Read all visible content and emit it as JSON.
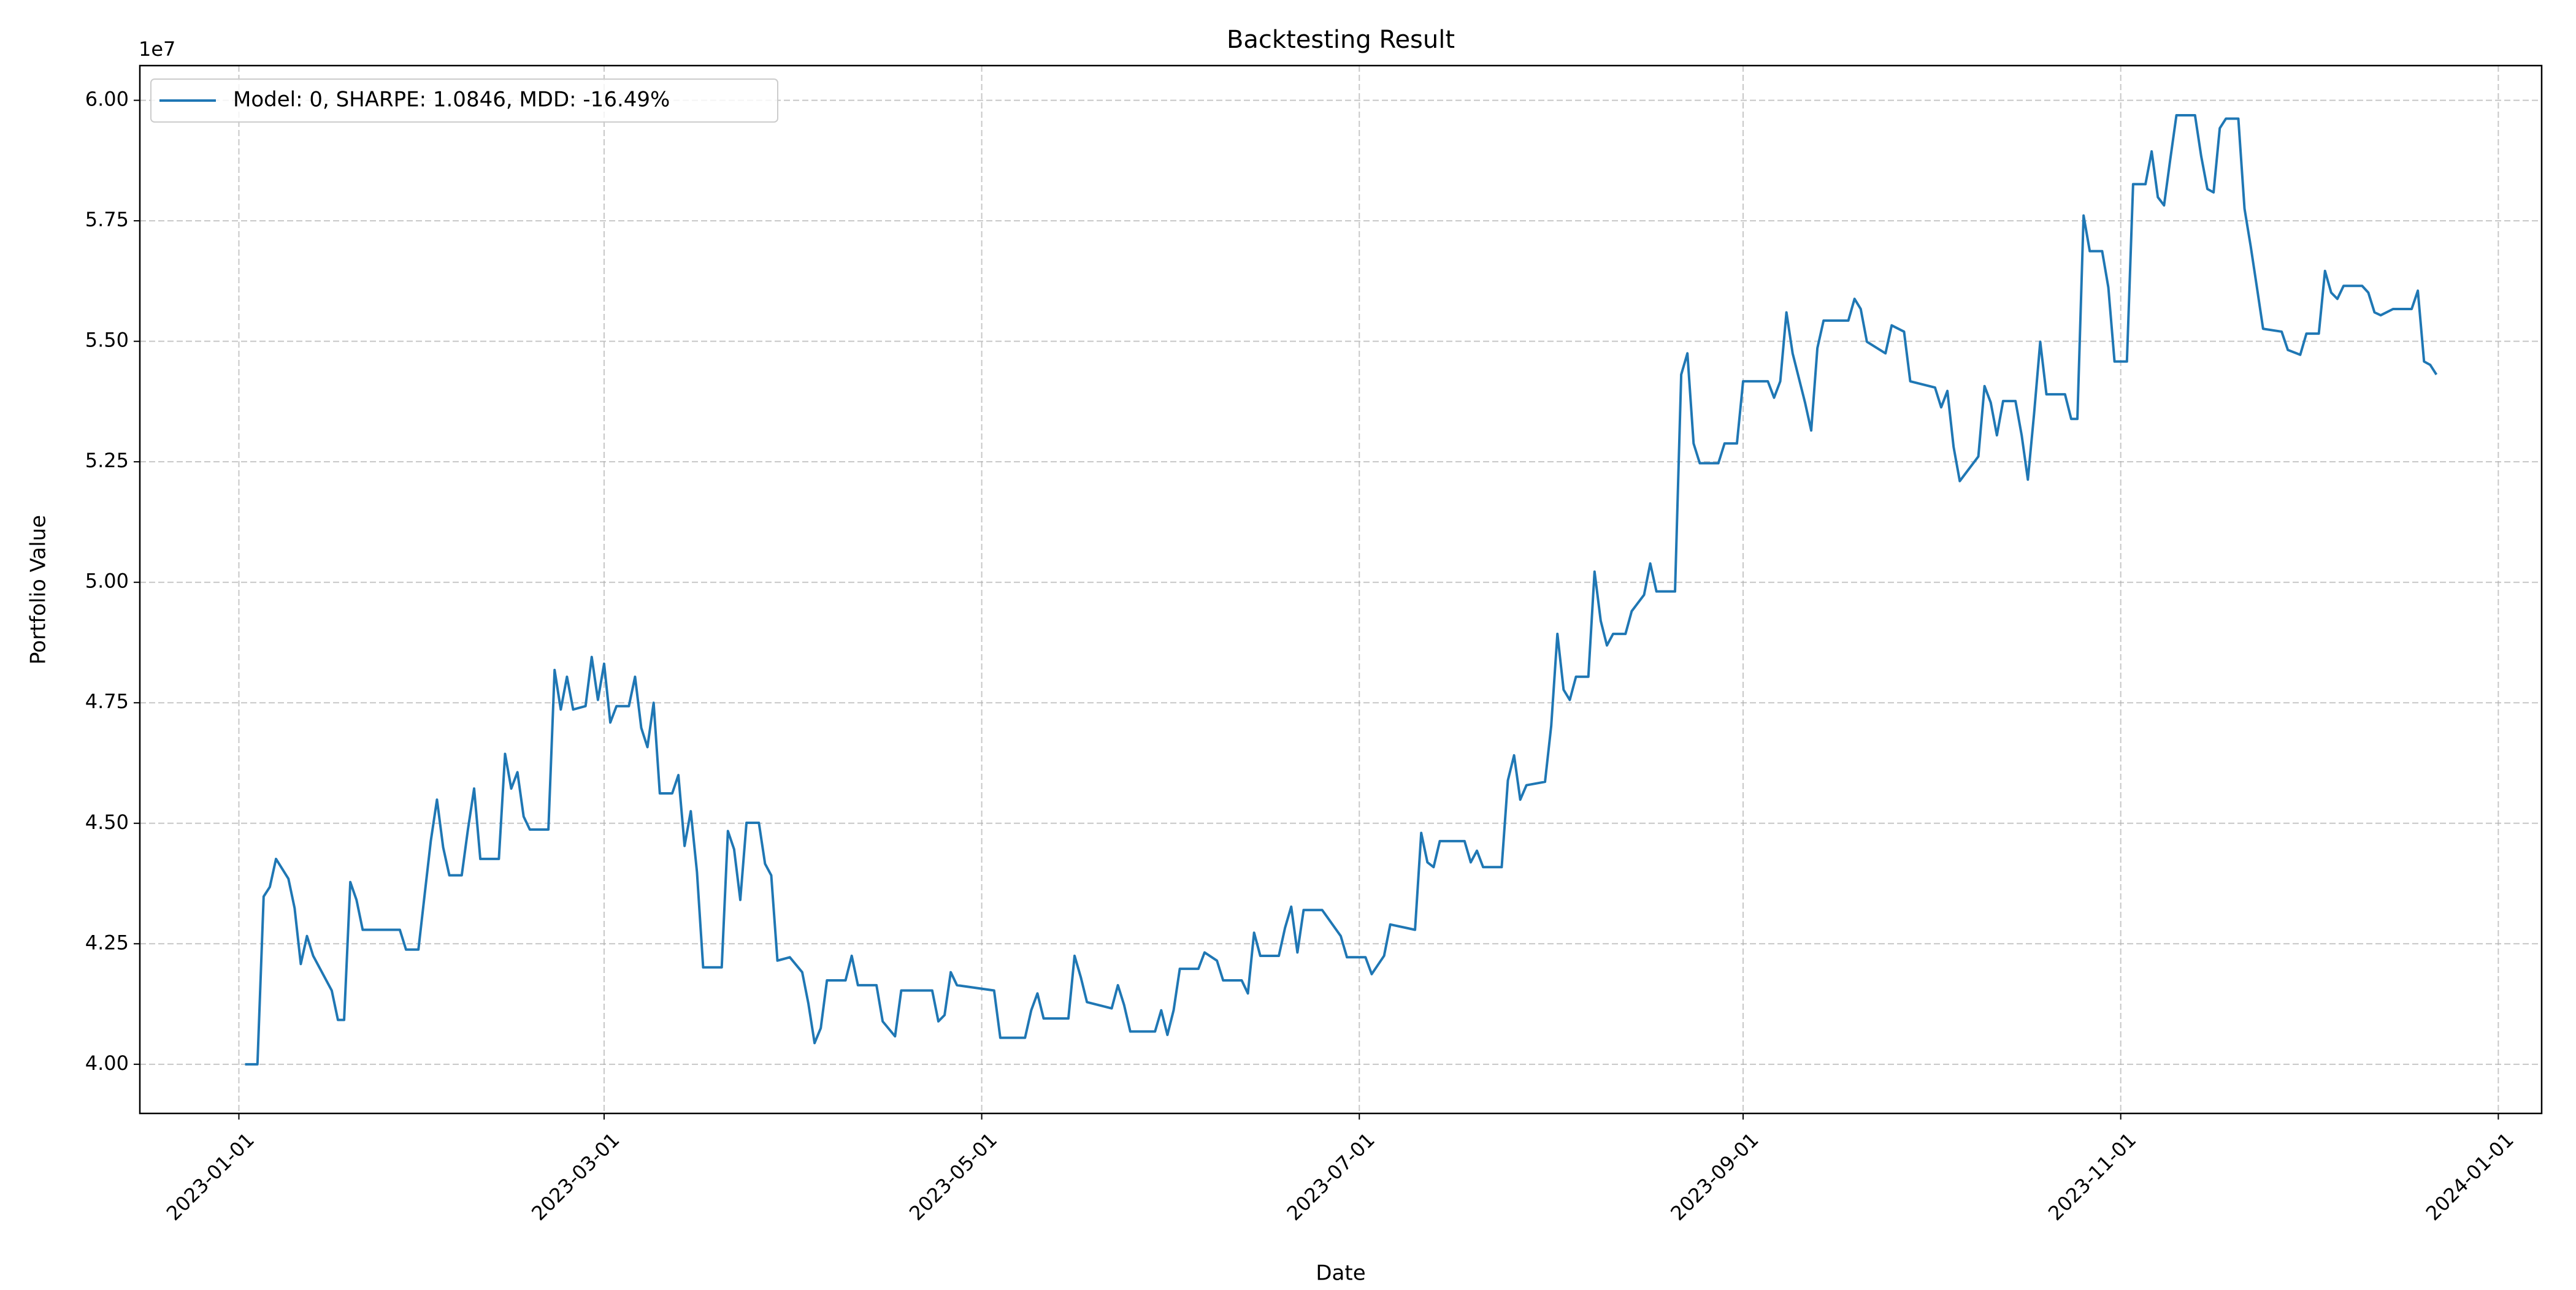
{
  "chart_data": {
    "type": "line",
    "title": "Backtesting Result",
    "x_label": "Date",
    "y_label": "Portfolio Value",
    "y_offset_text": "1e7",
    "x": [
      "2023-01-02",
      "2023-01-04",
      "2023-01-05",
      "2023-01-06",
      "2023-01-07",
      "2023-01-09",
      "2023-01-10",
      "2023-01-11",
      "2023-01-12",
      "2023-01-13",
      "2023-01-16",
      "2023-01-17",
      "2023-01-18",
      "2023-01-19",
      "2023-01-20",
      "2023-01-21",
      "2023-01-27",
      "2023-01-28",
      "2023-01-30",
      "2023-01-31",
      "2023-02-01",
      "2023-02-02",
      "2023-02-03",
      "2023-02-04",
      "2023-02-06",
      "2023-02-07",
      "2023-02-08",
      "2023-02-09",
      "2023-02-12",
      "2023-02-13",
      "2023-02-14",
      "2023-02-15",
      "2023-02-16",
      "2023-02-17",
      "2023-02-20",
      "2023-02-21",
      "2023-02-22",
      "2023-02-23",
      "2023-02-24",
      "2023-02-26",
      "2023-02-27",
      "2023-02-28",
      "2023-03-01",
      "2023-03-02",
      "2023-03-03",
      "2023-03-05",
      "2023-03-06",
      "2023-03-07",
      "2023-03-08",
      "2023-03-09",
      "2023-03-10",
      "2023-03-12",
      "2023-03-13",
      "2023-03-14",
      "2023-03-15",
      "2023-03-16",
      "2023-03-17",
      "2023-03-20",
      "2023-03-21",
      "2023-03-22",
      "2023-03-23",
      "2023-03-24",
      "2023-03-26",
      "2023-03-27",
      "2023-03-28",
      "2023-03-29",
      "2023-03-31",
      "2023-04-02",
      "2023-04-03",
      "2023-04-04",
      "2023-04-05",
      "2023-04-06",
      "2023-04-09",
      "2023-04-10",
      "2023-04-11",
      "2023-04-14",
      "2023-04-15",
      "2023-04-17",
      "2023-04-18",
      "2023-04-23",
      "2023-04-24",
      "2023-04-25",
      "2023-04-26",
      "2023-04-27",
      "2023-05-03",
      "2023-05-04",
      "2023-05-08",
      "2023-05-09",
      "2023-05-10",
      "2023-05-11",
      "2023-05-15",
      "2023-05-16",
      "2023-05-17",
      "2023-05-18",
      "2023-05-22",
      "2023-05-23",
      "2023-05-24",
      "2023-05-25",
      "2023-05-29",
      "2023-05-30",
      "2023-05-31",
      "2023-06-01",
      "2023-06-02",
      "2023-06-05",
      "2023-06-06",
      "2023-06-08",
      "2023-06-09",
      "2023-06-12",
      "2023-06-13",
      "2023-06-14",
      "2023-06-15",
      "2023-06-18",
      "2023-06-19",
      "2023-06-20",
      "2023-06-21",
      "2023-06-22",
      "2023-06-25",
      "2023-06-28",
      "2023-06-29",
      "2023-07-02",
      "2023-07-03",
      "2023-07-05",
      "2023-07-06",
      "2023-07-10",
      "2023-07-11",
      "2023-07-12",
      "2023-07-13",
      "2023-07-14",
      "2023-07-18",
      "2023-07-19",
      "2023-07-20",
      "2023-07-21",
      "2023-07-24",
      "2023-07-25",
      "2023-07-26",
      "2023-07-27",
      "2023-07-28",
      "2023-07-31",
      "2023-08-01",
      "2023-08-02",
      "2023-08-03",
      "2023-08-04",
      "2023-08-05",
      "2023-08-07",
      "2023-08-08",
      "2023-08-09",
      "2023-08-10",
      "2023-08-11",
      "2023-08-13",
      "2023-08-14",
      "2023-08-16",
      "2023-08-17",
      "2023-08-18",
      "2023-08-21",
      "2023-08-22",
      "2023-08-23",
      "2023-08-24",
      "2023-08-25",
      "2023-08-28",
      "2023-08-29",
      "2023-08-31",
      "2023-09-01",
      "2023-09-05",
      "2023-09-06",
      "2023-09-07",
      "2023-09-08",
      "2023-09-09",
      "2023-09-11",
      "2023-09-12",
      "2023-09-13",
      "2023-09-14",
      "2023-09-18",
      "2023-09-19",
      "2023-09-20",
      "2023-09-21",
      "2023-09-24",
      "2023-09-25",
      "2023-09-27",
      "2023-09-28",
      "2023-10-02",
      "2023-10-03",
      "2023-10-04",
      "2023-10-05",
      "2023-10-06",
      "2023-10-09",
      "2023-10-10",
      "2023-10-11",
      "2023-10-12",
      "2023-10-13",
      "2023-10-15",
      "2023-10-16",
      "2023-10-17",
      "2023-10-18",
      "2023-10-19",
      "2023-10-20",
      "2023-10-23",
      "2023-10-24",
      "2023-10-25",
      "2023-10-26",
      "2023-10-27",
      "2023-10-29",
      "2023-10-30",
      "2023-10-31",
      "2023-11-02",
      "2023-11-03",
      "2023-11-05",
      "2023-11-06",
      "2023-11-07",
      "2023-11-08",
      "2023-11-09",
      "2023-11-10",
      "2023-11-13",
      "2023-11-14",
      "2023-11-15",
      "2023-11-16",
      "2023-11-17",
      "2023-11-18",
      "2023-11-20",
      "2023-11-21",
      "2023-11-22",
      "2023-11-23",
      "2023-11-24",
      "2023-11-27",
      "2023-11-28",
      "2023-11-30",
      "2023-12-01",
      "2023-12-03",
      "2023-12-04",
      "2023-12-05",
      "2023-12-06",
      "2023-12-07",
      "2023-12-10",
      "2023-12-11",
      "2023-12-12",
      "2023-12-13",
      "2023-12-15",
      "2023-12-18",
      "2023-12-19",
      "2023-12-20",
      "2023-12-21",
      "2023-12-22"
    ],
    "series": [
      {
        "name": "Model: 0, SHARPE: 1.0846, MDD: -16.49%",
        "color": "#1f77b4",
        "values": [
          40000000,
          40000000,
          43480000,
          43680000,
          44260000,
          43850000,
          43240000,
          42080000,
          42660000,
          42250000,
          41530000,
          40920000,
          40920000,
          43780000,
          43410000,
          42790000,
          42790000,
          42380000,
          42380000,
          43510000,
          44630000,
          45490000,
          44500000,
          43920000,
          43920000,
          44870000,
          45720000,
          44260000,
          44260000,
          46440000,
          45720000,
          46060000,
          45140000,
          44870000,
          44870000,
          48180000,
          47360000,
          48040000,
          47360000,
          47430000,
          48450000,
          47560000,
          48310000,
          47090000,
          47430000,
          47430000,
          48040000,
          46980000,
          46580000,
          47500000,
          45620000,
          45620000,
          46000000,
          44530000,
          45250000,
          43990000,
          42010000,
          42010000,
          44840000,
          44460000,
          43410000,
          45010000,
          45010000,
          44160000,
          43920000,
          42150000,
          42220000,
          41910000,
          41260000,
          40440000,
          40750000,
          41740000,
          41740000,
          42250000,
          41640000,
          41640000,
          40890000,
          40580000,
          41530000,
          41530000,
          40890000,
          41020000,
          41910000,
          41640000,
          41530000,
          40550000,
          40550000,
          41120000,
          41470000,
          40950000,
          40950000,
          42250000,
          41810000,
          41290000,
          41160000,
          41640000,
          41230000,
          40680000,
          40680000,
          41120000,
          40610000,
          41120000,
          41980000,
          41980000,
          42320000,
          42150000,
          41740000,
          41740000,
          41470000,
          42730000,
          42250000,
          42250000,
          42830000,
          43270000,
          42320000,
          43200000,
          43200000,
          42660000,
          42220000,
          42220000,
          41870000,
          42250000,
          42900000,
          42790000,
          44800000,
          44190000,
          44090000,
          44630000,
          44630000,
          44190000,
          44430000,
          44090000,
          44090000,
          45890000,
          46410000,
          45490000,
          45790000,
          45860000,
          47020000,
          48930000,
          47770000,
          47560000,
          48040000,
          48040000,
          50220000,
          49200000,
          48690000,
          48930000,
          48930000,
          49400000,
          49740000,
          50390000,
          49810000,
          49810000,
          54310000,
          54750000,
          52880000,
          52470000,
          52470000,
          52880000,
          52880000,
          54170000,
          54170000,
          53830000,
          54170000,
          55600000,
          54750000,
          53730000,
          53150000,
          54860000,
          55430000,
          55430000,
          55880000,
          55670000,
          54990000,
          54750000,
          55330000,
          55200000,
          54170000,
          54040000,
          53630000,
          53970000,
          52810000,
          52100000,
          52610000,
          54070000,
          53730000,
          53050000,
          53760000,
          53760000,
          53050000,
          52130000,
          53490000,
          54990000,
          53900000,
          53900000,
          53390000,
          53390000,
          57610000,
          56870000,
          56870000,
          56120000,
          54580000,
          54580000,
          58260000,
          58260000,
          58940000,
          57990000,
          57820000,
          58770000,
          59690000,
          59690000,
          58840000,
          58160000,
          58090000,
          59420000,
          59620000,
          59620000,
          57750000,
          56970000,
          56120000,
          55260000,
          55200000,
          54820000,
          54720000,
          55160000,
          55160000,
          56460000,
          56010000,
          55880000,
          56150000,
          56150000,
          56010000,
          55600000,
          55540000,
          55670000,
          55670000,
          56050000,
          54580000,
          54510000,
          54310000
        ]
      }
    ],
    "xlim": [
      "2022-12-16",
      "2024-01-08"
    ],
    "xticks": [
      "2023-01-01",
      "2023-03-01",
      "2023-05-01",
      "2023-07-01",
      "2023-09-01",
      "2023-11-01",
      "2024-01-01"
    ],
    "ylim": [
      38980000,
      60720000
    ],
    "yticks": [
      {
        "value": 40000000,
        "label": "4.00"
      },
      {
        "value": 42500000,
        "label": "4.25"
      },
      {
        "value": 45000000,
        "label": "4.50"
      },
      {
        "value": 47500000,
        "label": "4.75"
      },
      {
        "value": 50000000,
        "label": "5.00"
      },
      {
        "value": 52500000,
        "label": "5.25"
      },
      {
        "value": 55000000,
        "label": "5.50"
      },
      {
        "value": 57500000,
        "label": "5.75"
      },
      {
        "value": 60000000,
        "label": "6.00"
      }
    ],
    "grid": true,
    "legend": "upper left"
  }
}
